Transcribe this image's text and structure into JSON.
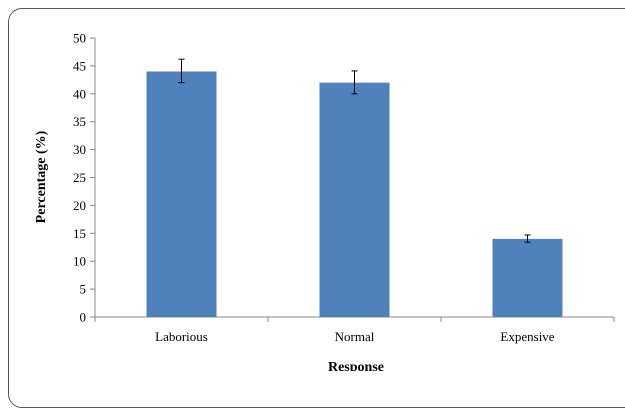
{
  "chart_data": {
    "type": "bar",
    "categories": [
      "Laborious",
      "Normal",
      "Expensive"
    ],
    "values": [
      44,
      42,
      14
    ],
    "error_low": [
      42,
      40,
      13.4
    ],
    "error_high": [
      46.2,
      44.1,
      14.7
    ],
    "ylim": [
      0,
      50
    ],
    "yticks": [
      "0",
      "5",
      "10",
      "15",
      "20",
      "25",
      "30",
      "35",
      "40",
      "45",
      "50"
    ],
    "xlabel": "Response",
    "ylabel": "Percentage (%)",
    "grid": false,
    "legend": "none",
    "bar_color": "#4F81BD"
  }
}
